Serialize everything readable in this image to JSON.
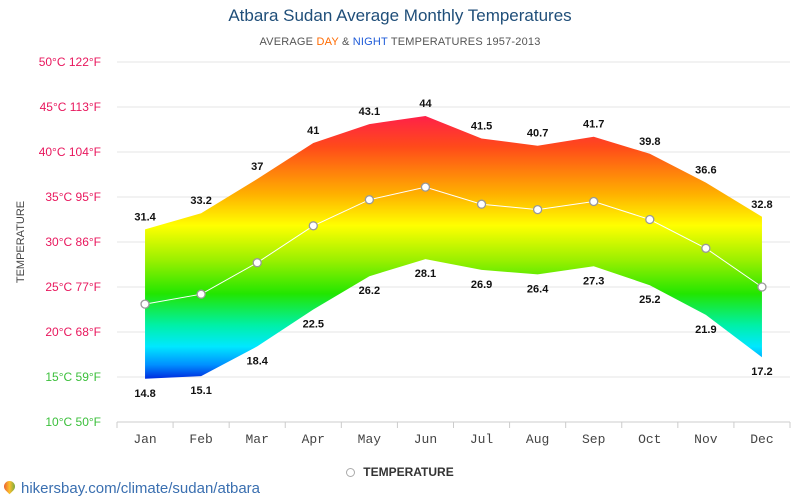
{
  "header": {
    "title": "Atbara Sudan Average Monthly Temperatures",
    "subtitle_prefix": "AVERAGE ",
    "subtitle_day": "DAY",
    "subtitle_and": " & ",
    "subtitle_night": "NIGHT",
    "subtitle_suffix": " TEMPERATURES 1957-2013"
  },
  "footer": {
    "site": "hikersbay.com/climate/sudan/atbara"
  },
  "legend": {
    "label": "TEMPERATURE"
  },
  "colors": {
    "day": "#ff6a00",
    "night": "#1e5bd8",
    "title": "#1f4e79",
    "link": "#3a6fb0"
  },
  "chart_data": {
    "type": "area",
    "ylabel": "TEMPERATURE",
    "ylim": [
      10,
      50
    ],
    "yticks": [
      {
        "value": 50,
        "label": "50°C 122°F",
        "color": "#e8175d"
      },
      {
        "value": 45,
        "label": "45°C 113°F",
        "color": "#e8175d"
      },
      {
        "value": 40,
        "label": "40°C 104°F",
        "color": "#e8175d"
      },
      {
        "value": 35,
        "label": "35°C 95°F",
        "color": "#e8175d"
      },
      {
        "value": 30,
        "label": "30°C 86°F",
        "color": "#e8175d"
      },
      {
        "value": 25,
        "label": "25°C 77°F",
        "color": "#e8175d"
      },
      {
        "value": 20,
        "label": "20°C 68°F",
        "color": "#e8175d"
      },
      {
        "value": 15,
        "label": "15°C 59°F",
        "color": "#3bbf3b"
      },
      {
        "value": 10,
        "label": "10°C 50°F",
        "color": "#3bbf3b"
      }
    ],
    "categories": [
      "Jan",
      "Feb",
      "Mar",
      "Apr",
      "May",
      "Jun",
      "Jul",
      "Aug",
      "Sep",
      "Oct",
      "Nov",
      "Dec"
    ],
    "series": [
      {
        "values": [
          31.4,
          33.2,
          37,
          41,
          43.1,
          44,
          41.5,
          40.7,
          41.7,
          39.8,
          36.6,
          32.8
        ]
      },
      {
        "values": [
          14.8,
          15.1,
          18.4,
          22.5,
          26.2,
          28.1,
          26.9,
          26.4,
          27.3,
          25.2,
          21.9,
          17.2
        ]
      },
      {
        "name": "TEMPERATURE",
        "values": [
          23.1,
          24.2,
          27.7,
          31.8,
          34.7,
          36.1,
          34.2,
          33.6,
          34.5,
          32.5,
          29.3,
          25.0
        ]
      }
    ],
    "grid": true,
    "legend_position": "bottom-center"
  }
}
